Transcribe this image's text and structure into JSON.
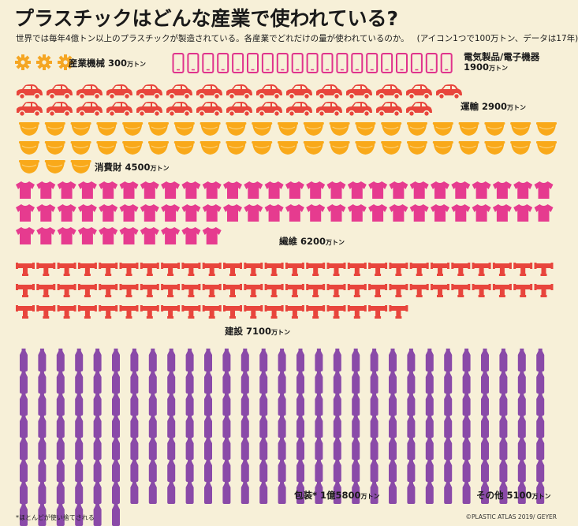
{
  "chart_data": {
    "type": "pictograph",
    "title": "プラスチックはどんな産業で使われている?",
    "subtitle": "世界では毎年4億トン以上のプラスチックが製造されている。各産業でどれだけの量が使われているのか。",
    "scale_note": "(アイコン1つで100万トン、データは17年)",
    "unit": "万トン",
    "categories": [
      {
        "id": "machinery",
        "name": "産業機械",
        "value": 300,
        "icon": "gear-icon",
        "color": "#f5a623"
      },
      {
        "id": "electronics",
        "name": "電気製品/電子機器",
        "value": 1900,
        "icon": "smartphone-icon",
        "color": "#e0338c"
      },
      {
        "id": "transport",
        "name": "運輸",
        "value": 2900,
        "icon": "car-icon",
        "color": "#e8453c"
      },
      {
        "id": "consumer",
        "name": "消費財",
        "value": 4500,
        "icon": "bowl-icon",
        "color": "#f9a91a"
      },
      {
        "id": "textile",
        "name": "繊維",
        "value": 6200,
        "icon": "tshirt-icon",
        "color": "#e63b8f"
      },
      {
        "id": "construction",
        "name": "建設",
        "value": 7100,
        "icon": "pipe-joint-icon",
        "color": "#e8453c"
      },
      {
        "id": "packaging",
        "name": "包装*",
        "value": 15800,
        "value_label": "1億5800",
        "icon": "bottle-icon",
        "color": "#8a4aa8"
      },
      {
        "id": "other",
        "name": "その他",
        "value": 5100,
        "icon": "bottle-icon",
        "color": "#8a4aa8"
      }
    ],
    "icon_value": 100
  },
  "footnote": "*ほとんどが使い捨てされる",
  "credit": "©PLASTIC ATLAS 2019/ GEYER"
}
